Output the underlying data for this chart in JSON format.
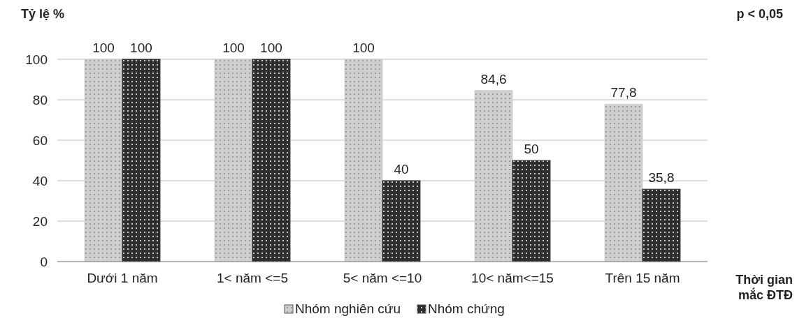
{
  "chart_data": {
    "type": "bar",
    "ylabel": "Tỷ lệ %",
    "xlabel": "Thời gian mắc ĐTĐ",
    "annotations": [
      "p < 0,05"
    ],
    "categories": [
      "Dưới 1 năm",
      "1< năm <=5",
      "5< năm <=10",
      "10< năm<=15",
      "Trên 15 năm"
    ],
    "series": [
      {
        "name": "Nhóm nghiên cứu",
        "color": "#cfcfcf",
        "values": [
          100,
          100,
          100,
          84.6,
          77.8
        ],
        "value_labels": [
          "100",
          "100",
          "100",
          "84,6",
          "77,8"
        ]
      },
      {
        "name": "Nhóm chứng",
        "color": "#2e2e2e",
        "values": [
          100,
          100,
          40,
          50,
          35.8
        ],
        "value_labels": [
          "100",
          "100",
          "40",
          "50",
          "35,8"
        ]
      }
    ],
    "ylim": [
      0,
      100
    ],
    "yticks": [
      0,
      20,
      40,
      60,
      80,
      100
    ],
    "grid": "y",
    "legend": "bottom"
  }
}
